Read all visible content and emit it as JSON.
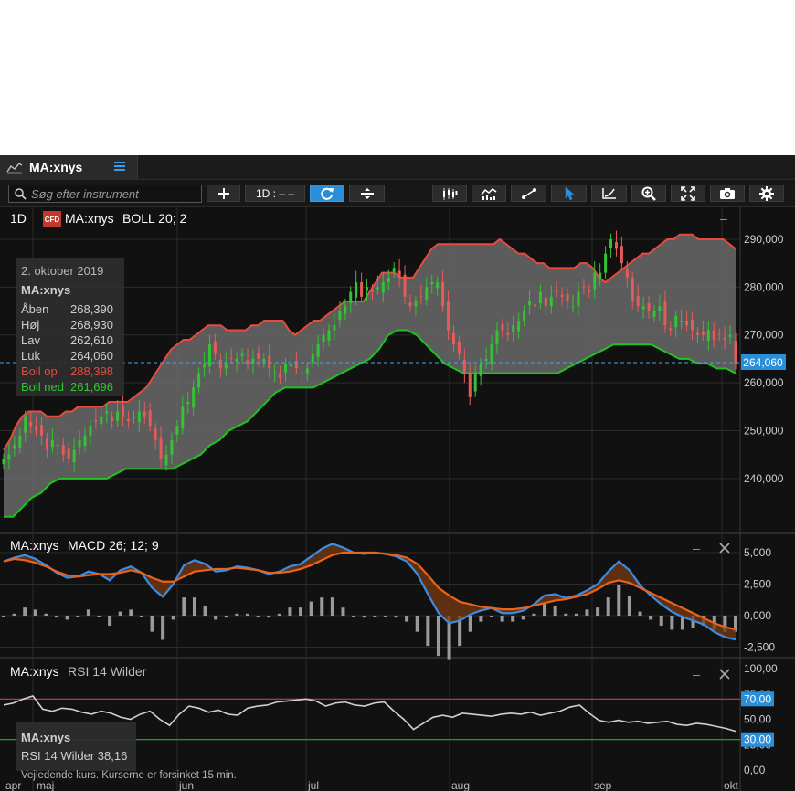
{
  "window": {
    "tab_title": "MA:xnys"
  },
  "toolbar": {
    "search_placeholder": "Søg efter instrument",
    "interval_label": "1D : – –"
  },
  "main_panel": {
    "interval": "1D",
    "badge": "CFD",
    "instrument": "MA:xnys",
    "indicator": "BOLL 20; 2",
    "collapse": "–"
  },
  "tooltip": {
    "date": "2. oktober 2019",
    "instrument": "MA:xnys",
    "rows": [
      {
        "label": "Åben",
        "value": "268,390",
        "color": "#cfcfcf"
      },
      {
        "label": "Høj",
        "value": "268,930",
        "color": "#cfcfcf"
      },
      {
        "label": "Lav",
        "value": "262,610",
        "color": "#cfcfcf"
      },
      {
        "label": "Luk",
        "value": "264,060",
        "color": "#cfcfcf"
      },
      {
        "label": "Boll op",
        "value": "288,398",
        "color": "#e84b3c"
      },
      {
        "label": "Boll ned",
        "value": "261,696",
        "color": "#2ec92e"
      }
    ]
  },
  "price_axis": {
    "ticks": [
      "290,000",
      "280,000",
      "270,000",
      "260,000",
      "250,000",
      "240,000"
    ],
    "current": "264,060"
  },
  "macd_panel": {
    "instrument": "MA:xnys",
    "indicator": "MACD 26; 12; 9",
    "ticks": [
      "5,000",
      "2,500",
      "0,000",
      "-2,500"
    ]
  },
  "rsi_panel": {
    "instrument": "MA:xnys",
    "indicator": "RSI 14 Wilder",
    "ticks": [
      "100,00",
      "75,00",
      "50,00",
      "25,00",
      "0,00"
    ],
    "upper_level": "70,00",
    "lower_level": "30,00",
    "readout_instrument": "MA:xnys",
    "readout": "RSI 14 Wilder 38,16"
  },
  "footer": {
    "disclaimer": "Vejledende kurs. Kurserne er forsinket 15 min."
  },
  "x_axis": {
    "labels": [
      "apr",
      "maj",
      "jun",
      "jul",
      "aug",
      "sep",
      "okt"
    ]
  },
  "colors": {
    "boll_upper": "#e84b3c",
    "boll_lower": "#1fc41f",
    "up_candle": "#33c433",
    "down_candle": "#e85a5a",
    "macd": "#3a8ee6",
    "signal": "#e8641a",
    "rsi_upper": "#d83a3a",
    "rsi_lower": "#1fb41f",
    "accent": "#2a8fd8"
  },
  "chart_data": [
    {
      "type": "candlestick",
      "title": "MA:xnys",
      "indicator": "BOLL 20; 2",
      "ylim": [
        231,
        294
      ],
      "x_range": [
        "2019-04-01",
        "2019-10-02"
      ],
      "x_ticks": [
        "apr",
        "maj",
        "jun",
        "jul",
        "aug",
        "sep",
        "okt"
      ],
      "last": {
        "date": "2. oktober 2019",
        "open": 268.39,
        "high": 268.93,
        "low": 262.61,
        "close": 264.06,
        "boll_up": 288.398,
        "boll_down": 261.696
      },
      "close_series": [
        244,
        245,
        247,
        249,
        253,
        251,
        250,
        249,
        246,
        248,
        247,
        245,
        244,
        246,
        248,
        249,
        251,
        252,
        253,
        254,
        252,
        254,
        253,
        252,
        253,
        254,
        253,
        251,
        248,
        244,
        245,
        248,
        251,
        255,
        256,
        259,
        262,
        264,
        268,
        266,
        263,
        264,
        265,
        265,
        266,
        264,
        265,
        265,
        265,
        263,
        262,
        261,
        264,
        264,
        263,
        262,
        263,
        266,
        268,
        270,
        271,
        272,
        275,
        276,
        279,
        281,
        278,
        280,
        279,
        280,
        281,
        282,
        284,
        282,
        278,
        276,
        277,
        278,
        280,
        281,
        281,
        276,
        271,
        268,
        266,
        262,
        257,
        262,
        264,
        265,
        268,
        271,
        271,
        270,
        272,
        273,
        275,
        277,
        276,
        279,
        276,
        278,
        279,
        278,
        277,
        276,
        279,
        280,
        279,
        283,
        283,
        287,
        290,
        288,
        285,
        282,
        277,
        276,
        276,
        275,
        275,
        276,
        272,
        271,
        274,
        273,
        272,
        271,
        270,
        270,
        271,
        269,
        270,
        269,
        270,
        264
      ],
      "boll_upper": [
        246,
        248,
        251,
        253,
        254,
        254,
        254,
        253,
        253,
        253,
        254,
        254,
        255,
        255,
        255,
        255,
        255,
        256,
        256,
        256,
        256,
        257,
        258,
        259,
        261,
        263,
        265,
        267,
        268,
        269,
        269,
        270,
        271,
        272,
        272,
        272,
        271,
        271,
        271,
        271,
        272,
        272,
        273,
        273,
        273,
        273,
        271,
        270,
        271,
        272,
        273,
        273,
        274,
        275,
        276,
        277,
        277,
        277,
        277,
        279,
        281,
        283,
        283,
        283,
        282,
        282,
        282,
        284,
        286,
        288,
        289,
        289,
        289,
        289,
        289,
        289,
        289,
        289,
        289,
        289,
        290,
        289,
        288,
        287,
        287,
        286,
        285,
        285,
        284,
        284,
        284,
        284,
        284,
        285,
        285,
        284,
        282,
        281,
        282,
        283,
        284,
        285,
        286,
        287,
        287,
        288,
        289,
        290,
        290,
        291,
        291,
        291,
        290,
        290,
        290,
        290,
        290,
        289,
        288
      ],
      "boll_lower": [
        232,
        232,
        234,
        236,
        237,
        239,
        240,
        240,
        240,
        240,
        240,
        240,
        241,
        242,
        242,
        242,
        242,
        242,
        242,
        243,
        244,
        245,
        247,
        248,
        250,
        251,
        252,
        254,
        256,
        258,
        259,
        259,
        259,
        259,
        260,
        261,
        262,
        263,
        264,
        265,
        267,
        270,
        271,
        271,
        270,
        268,
        266,
        264,
        263,
        262,
        262,
        262,
        262,
        262,
        262,
        262,
        262,
        262,
        262,
        262,
        263,
        264,
        265,
        266,
        267,
        268,
        268,
        268,
        268,
        268,
        267,
        266,
        265,
        265,
        264,
        264,
        263,
        263,
        262
      ]
    },
    {
      "type": "line",
      "title": "MACD 26; 12; 9",
      "ylim": [
        -3.2,
        6
      ],
      "series": [
        {
          "name": "MACD",
          "values": [
            4.3,
            4.6,
            4.8,
            4.5,
            4,
            3.4,
            3,
            3.1,
            3.5,
            3.3,
            2.8,
            3.6,
            3.9,
            3.4,
            2.2,
            1.5,
            2.5,
            4.0,
            4.4,
            4.1,
            3.5,
            3.6,
            3.9,
            3.8,
            3.6,
            3.3,
            3.5,
            3.9,
            4.1,
            4.7,
            5.3,
            5.7,
            5.4,
            5.0,
            4.9,
            5.0,
            4.9,
            4.7,
            4.3,
            3.3,
            1.7,
            0.2,
            -0.6,
            -0.4,
            0.1,
            0.4,
            0.6,
            0.2,
            0.2,
            0.4,
            0.9,
            1.6,
            1.7,
            1.4,
            1.6,
            2.0,
            2.5,
            3.5,
            4.3,
            3.6,
            2.4,
            1.6,
            0.9,
            0.3,
            -0.1,
            -0.4,
            -0.7,
            -1.3,
            -1.7,
            -1.9
          ]
        },
        {
          "name": "Signal",
          "values": [
            4.3,
            4.5,
            4.4,
            4.2,
            3.9,
            3.5,
            3.2,
            3.1,
            3.2,
            3.3,
            3.3,
            3.4,
            3.6,
            3.4,
            3.0,
            2.7,
            2.7,
            3.1,
            3.5,
            3.6,
            3.7,
            3.7,
            3.8,
            3.7,
            3.6,
            3.4,
            3.4,
            3.5,
            3.7,
            4.0,
            4.4,
            4.8,
            5.0,
            5.0,
            5.0,
            5.0,
            4.9,
            4.8,
            4.6,
            4.1,
            3.2,
            2.2,
            1.6,
            1.1,
            0.9,
            0.7,
            0.6,
            0.5,
            0.5,
            0.6,
            0.8,
            1.0,
            1.2,
            1.3,
            1.5,
            1.7,
            2.1,
            2.6,
            2.8,
            2.6,
            2.2,
            1.8,
            1.4,
            1.0,
            0.6,
            0.2,
            -0.2,
            -0.6,
            -0.9,
            -1.1
          ]
        }
      ]
    },
    {
      "type": "line",
      "title": "RSI 14 Wilder",
      "ylim": [
        0,
        100
      ],
      "levels": [
        70,
        30
      ],
      "series": [
        {
          "name": "RSI 14 Wilder",
          "values": [
            64,
            66,
            70,
            73,
            60,
            58,
            61,
            60,
            57,
            55,
            58,
            56,
            52,
            50,
            55,
            58,
            50,
            44,
            55,
            63,
            61,
            57,
            59,
            55,
            54,
            61,
            63,
            64,
            67,
            68,
            69,
            70,
            68,
            63,
            66,
            67,
            64,
            63,
            66,
            67,
            58,
            50,
            40,
            46,
            52,
            54,
            52,
            56,
            55,
            54,
            53,
            55,
            56,
            55,
            57,
            54,
            56,
            58,
            62,
            64,
            56,
            49,
            47,
            49,
            47,
            48,
            46,
            47,
            48,
            45,
            44,
            46,
            45,
            43,
            41,
            38.16
          ]
        }
      ]
    }
  ]
}
